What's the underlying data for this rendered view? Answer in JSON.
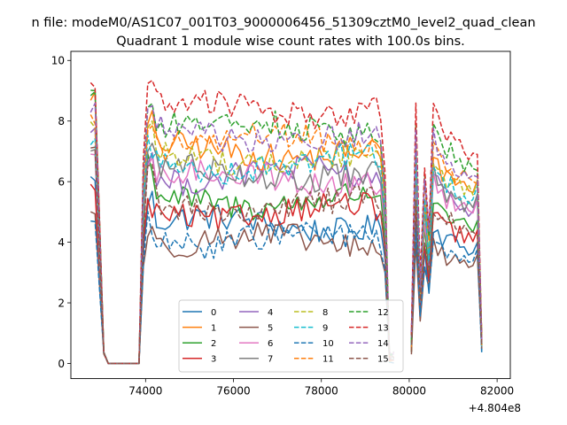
{
  "chart_data": {
    "type": "line",
    "suptitle": "n file: modeM0/AS1C07_001T03_9000006456_51309cztM0_level2_quad_clean",
    "title": "Quadrant 1 module wise count rates with 100.0s bins.",
    "xlabel": "",
    "ylabel": "",
    "x_offset_label": "+4.804e8",
    "xlim": [
      72300,
      82300
    ],
    "ylim": [
      -0.5,
      10.3
    ],
    "xticks": [
      74000,
      76000,
      78000,
      80000,
      82000
    ],
    "xtick_labels": [
      "74000",
      "76000",
      "78000",
      "80000",
      "82000"
    ],
    "yticks": [
      0,
      2,
      4,
      6,
      8,
      10
    ],
    "ytick_labels": [
      "0",
      "2",
      "4",
      "6",
      "8",
      "10"
    ],
    "legend_position": "lower-center",
    "legend_columns": 4,
    "x_segments": [
      {
        "start": 72750,
        "end": 73950,
        "step": 100
      },
      {
        "start": 73950,
        "end": 79450,
        "step": 100
      },
      {
        "start": 79450,
        "end": 79650,
        "step": 100
      },
      {
        "start": 80050,
        "end": 81650,
        "step": 100
      }
    ],
    "series": [
      {
        "name": "0",
        "color": "#1f77b4",
        "dash": "solid",
        "level": 4.6,
        "high": 6.5,
        "early": 4.9
      },
      {
        "name": "1",
        "color": "#ff7f0e",
        "dash": "solid",
        "level": 7.0,
        "high": 9.4,
        "early": 7.3
      },
      {
        "name": "2",
        "color": "#2ca02c",
        "dash": "solid",
        "level": 5.4,
        "high": 9.6,
        "early": 5.7
      },
      {
        "name": "3",
        "color": "#d62728",
        "dash": "solid",
        "level": 5.0,
        "high": 6.2,
        "early": 4.8
      },
      {
        "name": "4",
        "color": "#9467bd",
        "dash": "solid",
        "level": 6.2,
        "high": 8.2,
        "early": 6.6
      },
      {
        "name": "5",
        "color": "#8c564b",
        "dash": "solid",
        "level": 4.0,
        "high": 5.3,
        "early": 4.2
      },
      {
        "name": "6",
        "color": "#e377c2",
        "dash": "solid",
        "level": 6.1,
        "high": 7.2,
        "early": 6.4
      },
      {
        "name": "7",
        "color": "#7f7f7f",
        "dash": "solid",
        "level": 6.3,
        "high": 7.5,
        "early": 6.7
      },
      {
        "name": "8",
        "color": "#bcbd22",
        "dash": "dashed",
        "level": 6.8,
        "high": 8.4,
        "early": 7.2
      },
      {
        "name": "9",
        "color": "#17becf",
        "dash": "dashed",
        "level": 6.6,
        "high": 7.8,
        "early": 6.9
      },
      {
        "name": "10",
        "color": "#1f77b4",
        "dash": "dashed",
        "level": 4.1,
        "high": 5.0,
        "early": 4.3
      },
      {
        "name": "11",
        "color": "#ff7f0e",
        "dash": "dashed",
        "level": 7.3,
        "high": 8.6,
        "early": 7.7
      },
      {
        "name": "12",
        "color": "#2ca02c",
        "dash": "dashed",
        "level": 7.8,
        "high": 9.5,
        "early": 8.2
      },
      {
        "name": "13",
        "color": "#d62728",
        "dash": "dashed",
        "level": 8.4,
        "high": 9.8,
        "early": 8.9
      },
      {
        "name": "14",
        "color": "#9467bd",
        "dash": "dashed",
        "level": 7.5,
        "high": 9.0,
        "early": 7.9
      },
      {
        "name": "15",
        "color": "#8c564b",
        "dash": "dashed",
        "level": 5.2,
        "high": 7.6,
        "early": 5.6
      }
    ]
  }
}
